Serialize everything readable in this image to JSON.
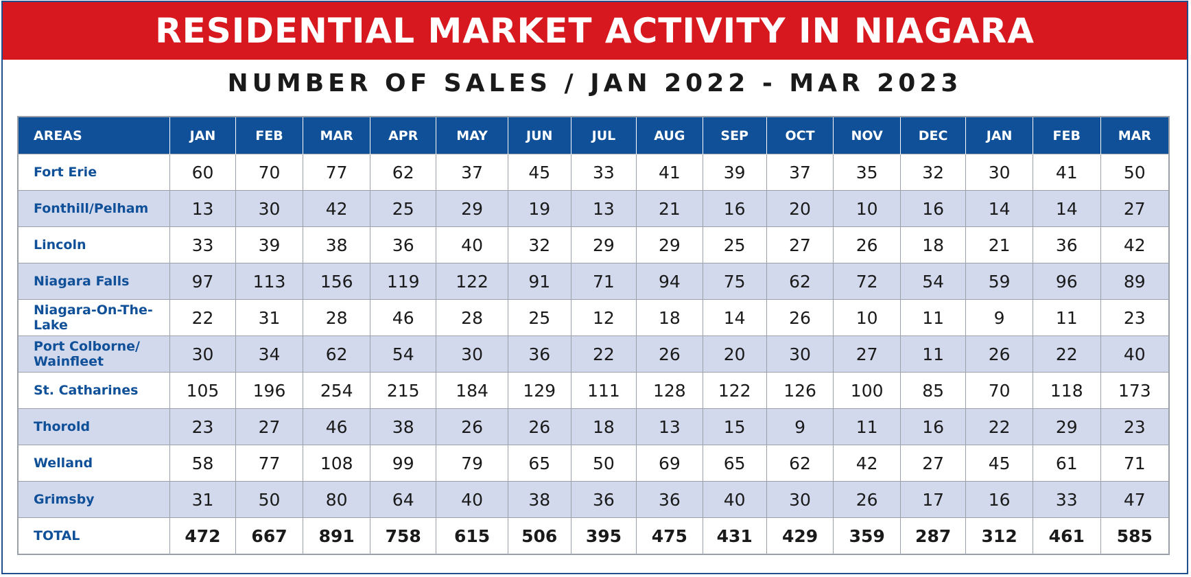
{
  "header": {
    "title": "RESIDENTIAL MARKET ACTIVITY IN NIAGARA",
    "subtitle": "NUMBER OF SALES / JAN 2022 - MAR 2023"
  },
  "colors": {
    "banner": "#d7191f",
    "table_header": "#0f5098",
    "alt_row": "#d2d9ec",
    "area_text": "#0f5098"
  },
  "chart_data": {
    "type": "table",
    "title": "RESIDENTIAL MARKET ACTIVITY IN NIAGARA",
    "subtitle": "NUMBER OF SALES / JAN 2022 - MAR 2023",
    "row_header_label": "AREAS",
    "columns": [
      "JAN",
      "FEB",
      "MAR",
      "APR",
      "MAY",
      "JUN",
      "JUL",
      "AUG",
      "SEP",
      "OCT",
      "NOV",
      "DEC",
      "JAN",
      "FEB",
      "MAR"
    ],
    "rows": [
      {
        "area": "Fort Erie",
        "values": [
          60,
          70,
          77,
          62,
          37,
          45,
          33,
          41,
          39,
          37,
          35,
          32,
          30,
          41,
          50
        ]
      },
      {
        "area": "Fonthill/Pelham",
        "values": [
          13,
          30,
          42,
          25,
          29,
          19,
          13,
          21,
          16,
          20,
          10,
          16,
          14,
          14,
          27
        ]
      },
      {
        "area": "Lincoln",
        "values": [
          33,
          39,
          38,
          36,
          40,
          32,
          29,
          29,
          25,
          27,
          26,
          18,
          21,
          36,
          42
        ]
      },
      {
        "area": "Niagara Falls",
        "values": [
          97,
          113,
          156,
          119,
          122,
          91,
          71,
          94,
          75,
          62,
          72,
          54,
          59,
          96,
          89
        ]
      },
      {
        "area": "Niagara-On-The-Lake",
        "values": [
          22,
          31,
          28,
          46,
          28,
          25,
          12,
          18,
          14,
          26,
          10,
          11,
          9,
          11,
          23
        ]
      },
      {
        "area": "Port Colborne/ Wainfleet",
        "values": [
          30,
          34,
          62,
          54,
          30,
          36,
          22,
          26,
          20,
          30,
          27,
          11,
          26,
          22,
          40
        ]
      },
      {
        "area": "St. Catharines",
        "values": [
          105,
          196,
          254,
          215,
          184,
          129,
          111,
          128,
          122,
          126,
          100,
          85,
          70,
          118,
          173
        ]
      },
      {
        "area": "Thorold",
        "values": [
          23,
          27,
          46,
          38,
          26,
          26,
          18,
          13,
          15,
          9,
          11,
          16,
          22,
          29,
          23
        ]
      },
      {
        "area": "Welland",
        "values": [
          58,
          77,
          108,
          99,
          79,
          65,
          50,
          69,
          65,
          62,
          42,
          27,
          45,
          61,
          71
        ]
      },
      {
        "area": "Grimsby",
        "values": [
          31,
          50,
          80,
          64,
          40,
          38,
          36,
          36,
          40,
          30,
          26,
          17,
          16,
          33,
          47
        ]
      }
    ],
    "total": {
      "area": "TOTAL",
      "values": [
        472,
        667,
        891,
        758,
        615,
        506,
        395,
        475,
        431,
        429,
        359,
        287,
        312,
        461,
        585
      ]
    }
  }
}
